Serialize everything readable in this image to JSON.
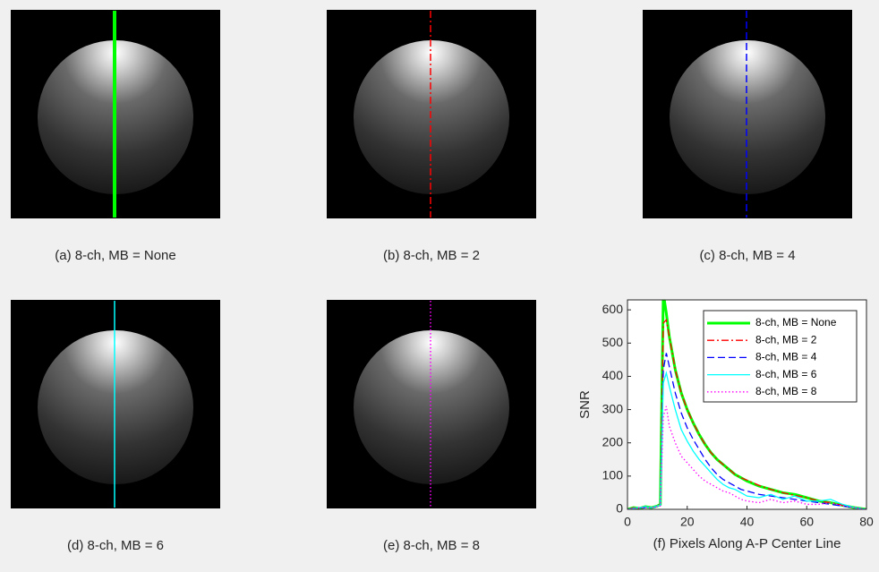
{
  "panels": [
    {
      "caption": "(a) 8-ch, MB = None",
      "line_color": "#00ff00",
      "line_style": "solid"
    },
    {
      "caption": "(b) 8-ch, MB = 2",
      "line_color": "#ff0000",
      "line_style": "dashdot"
    },
    {
      "caption": "(c) 8-ch, MB = 4",
      "line_color": "#0000ff",
      "line_style": "dashed"
    },
    {
      "caption": "(d) 8-ch, MB = 6",
      "line_color": "#00ffff",
      "line_style": "solid"
    },
    {
      "caption": "(e) 8-ch, MB = 8",
      "line_color": "#ff00ff",
      "line_style": "dotted"
    }
  ],
  "chart_data": {
    "type": "line",
    "xlabel": "(f) Pixels Along A-P Center Line",
    "ylabel": "SNR",
    "x": [
      0,
      2,
      4,
      6,
      8,
      10,
      11,
      12,
      13,
      14,
      16,
      18,
      20,
      22,
      24,
      26,
      28,
      30,
      32,
      34,
      36,
      38,
      40,
      44,
      48,
      52,
      56,
      60,
      64,
      68,
      72,
      76,
      80
    ],
    "series": [
      {
        "name": "8-ch, MB = None",
        "color": "#00ff00",
        "style": "solid",
        "width": 3,
        "values": [
          0,
          5,
          3,
          8,
          5,
          10,
          15,
          650,
          590,
          520,
          420,
          350,
          300,
          260,
          225,
          195,
          170,
          150,
          135,
          120,
          105,
          95,
          85,
          70,
          60,
          50,
          45,
          35,
          25,
          20,
          12,
          5,
          0
        ]
      },
      {
        "name": "8-ch, MB = 2",
        "color": "#ff0000",
        "style": "dashdot",
        "width": 1.3,
        "values": [
          0,
          5,
          3,
          8,
          5,
          10,
          15,
          560,
          570,
          520,
          420,
          350,
          300,
          260,
          225,
          195,
          170,
          150,
          135,
          120,
          105,
          95,
          88,
          72,
          60,
          50,
          42,
          35,
          25,
          20,
          12,
          5,
          0
        ]
      },
      {
        "name": "8-ch, MB = 4",
        "color": "#0000ff",
        "style": "dashed",
        "width": 1.3,
        "values": [
          0,
          3,
          5,
          5,
          5,
          8,
          12,
          420,
          470,
          430,
          350,
          290,
          245,
          210,
          180,
          150,
          125,
          105,
          90,
          80,
          70,
          60,
          55,
          45,
          40,
          35,
          30,
          25,
          20,
          15,
          10,
          5,
          0
        ]
      },
      {
        "name": "8-ch, MB = 6",
        "color": "#00ffff",
        "style": "solid",
        "width": 1.3,
        "values": [
          0,
          3,
          5,
          8,
          5,
          10,
          12,
          380,
          410,
          370,
          300,
          240,
          205,
          175,
          150,
          130,
          110,
          90,
          75,
          65,
          60,
          50,
          40,
          35,
          45,
          30,
          40,
          25,
          25,
          30,
          15,
          5,
          0
        ]
      },
      {
        "name": "8-ch, MB = 8",
        "color": "#ff00ff",
        "style": "dotted",
        "width": 1.3,
        "values": [
          0,
          3,
          5,
          5,
          5,
          8,
          10,
          280,
          310,
          250,
          200,
          160,
          140,
          120,
          100,
          85,
          75,
          65,
          55,
          50,
          40,
          30,
          25,
          20,
          30,
          20,
          25,
          15,
          15,
          20,
          10,
          5,
          0
        ]
      }
    ],
    "xlim": [
      0,
      80
    ],
    "xticks": [
      0,
      20,
      40,
      60,
      80
    ],
    "ylim": [
      0,
      630
    ],
    "yticks": [
      0,
      100,
      200,
      300,
      400,
      500,
      600
    ],
    "legend": "upper right"
  }
}
